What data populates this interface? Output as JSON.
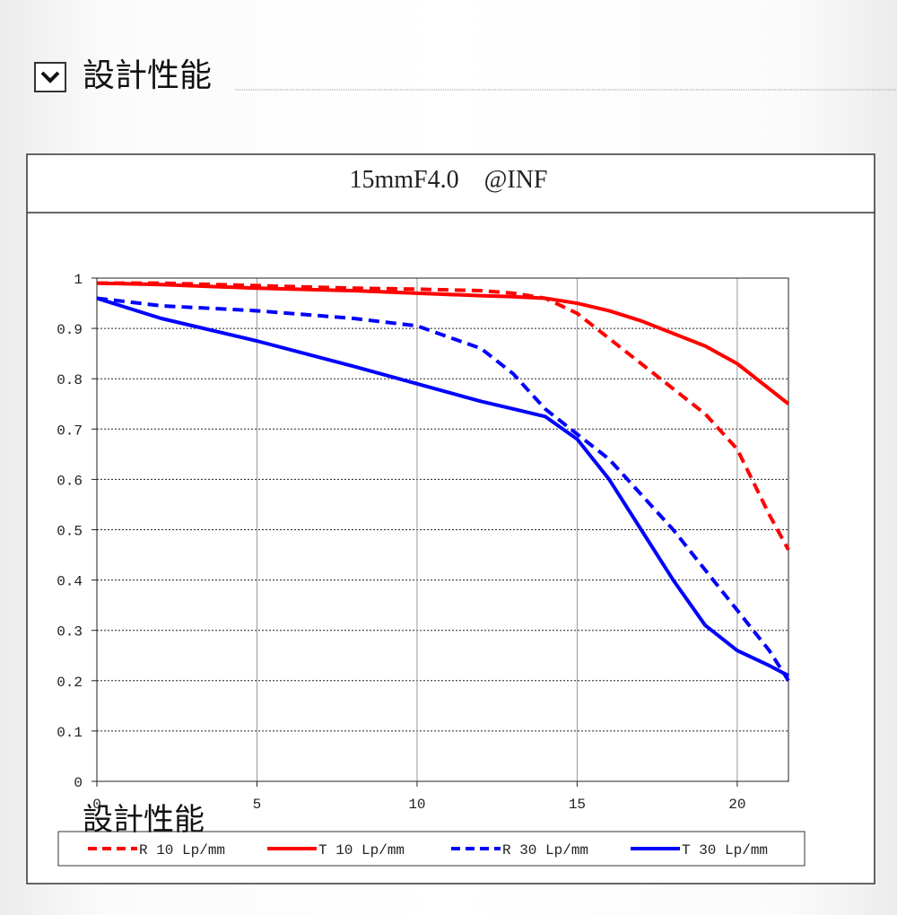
{
  "header": {
    "title": "設計性能"
  },
  "caption_overlay": "設計性能",
  "chart_data": {
    "type": "line",
    "title": "15mmF4.0　@INF",
    "x": [
      0,
      2,
      5,
      8,
      10,
      12,
      13,
      14,
      15,
      16,
      17,
      18,
      19,
      20,
      21,
      21.6
    ],
    "xlim": [
      0,
      21.6
    ],
    "xticks": [
      0,
      5,
      10,
      15,
      20
    ],
    "ylim": [
      0,
      1
    ],
    "yticks": [
      0,
      0.1,
      0.2,
      0.3,
      0.4,
      0.5,
      0.6,
      0.7,
      0.8,
      0.9,
      1
    ],
    "grid": true,
    "legend": "bottom",
    "series": [
      {
        "name": "R 10 Lp/mm",
        "color": "#ff0000",
        "style": "dashed",
        "values": [
          0.99,
          0.99,
          0.985,
          0.98,
          0.978,
          0.975,
          0.97,
          0.96,
          0.93,
          0.88,
          0.83,
          0.78,
          0.73,
          0.66,
          0.53,
          0.46
        ]
      },
      {
        "name": "T 10 Lp/mm",
        "color": "#ff0000",
        "style": "solid",
        "values": [
          0.99,
          0.987,
          0.98,
          0.975,
          0.97,
          0.965,
          0.963,
          0.96,
          0.95,
          0.935,
          0.915,
          0.89,
          0.865,
          0.83,
          0.78,
          0.75
        ]
      },
      {
        "name": "R 30 Lp/mm",
        "color": "#0000ff",
        "style": "dashed",
        "values": [
          0.96,
          0.945,
          0.935,
          0.92,
          0.905,
          0.86,
          0.81,
          0.74,
          0.69,
          0.64,
          0.57,
          0.5,
          0.42,
          0.34,
          0.26,
          0.2
        ]
      },
      {
        "name": "T 30 Lp/mm",
        "color": "#0000ff",
        "style": "solid",
        "values": [
          0.96,
          0.92,
          0.875,
          0.825,
          0.79,
          0.755,
          0.74,
          0.725,
          0.68,
          0.6,
          0.5,
          0.4,
          0.31,
          0.26,
          0.23,
          0.21
        ]
      }
    ]
  }
}
